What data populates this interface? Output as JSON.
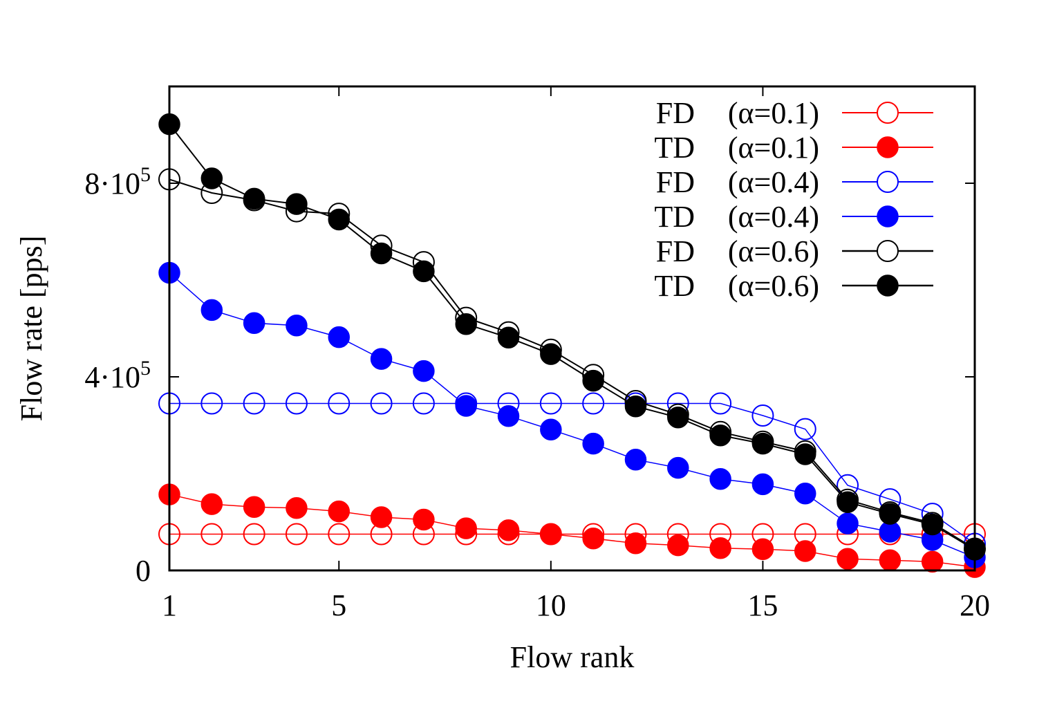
{
  "chart_data": {
    "type": "line",
    "xlabel": "Flow rank",
    "ylabel": "Flow rate [pps]",
    "xlim": [
      1,
      20
    ],
    "ylim": [
      0,
      1000000
    ],
    "x_ticks": [
      1,
      5,
      10,
      15,
      20
    ],
    "x_tick_labels": [
      "1",
      "5",
      "10",
      "15",
      "20"
    ],
    "y_ticks": [
      {
        "value": 0,
        "text": "0",
        "exp": ""
      },
      {
        "value": 400000,
        "text": "4·10",
        "exp": "5"
      },
      {
        "value": 800000,
        "text": "8·10",
        "exp": "5"
      }
    ],
    "grid": false,
    "legend_position": "top-right",
    "x": [
      1,
      2,
      3,
      4,
      5,
      6,
      7,
      8,
      9,
      10,
      11,
      12,
      13,
      14,
      15,
      16,
      17,
      18,
      19,
      20
    ],
    "series": [
      {
        "name": "FD (α=0.1)",
        "name_prefix": "FD",
        "name_param": "(α=0.1)",
        "color": "#ff0000",
        "marker": "open",
        "line_width": 1.5,
        "values": [
          75000,
          75000,
          75000,
          75000,
          75000,
          75000,
          75000,
          75000,
          75000,
          75000,
          75000,
          75000,
          75000,
          75000,
          75000,
          75000,
          75000,
          75000,
          75000,
          75000
        ]
      },
      {
        "name": "TD (α=0.1)",
        "name_prefix": "TD",
        "name_param": "(α=0.1)",
        "color": "#ff0000",
        "marker": "filled",
        "line_width": 1.5,
        "values": [
          157000,
          137000,
          131000,
          129000,
          122000,
          110000,
          105000,
          87000,
          83000,
          75000,
          66000,
          56000,
          52000,
          46000,
          44000,
          40000,
          24000,
          21000,
          18000,
          7000
        ]
      },
      {
        "name": "FD (α=0.4)",
        "name_prefix": "FD",
        "name_param": "(α=0.4)",
        "color": "#0000ff",
        "marker": "open",
        "line_width": 1.5,
        "values": [
          345000,
          345000,
          345000,
          345000,
          345000,
          345000,
          345000,
          345000,
          345000,
          345000,
          345000,
          345000,
          345000,
          345000,
          320000,
          292000,
          176000,
          147000,
          117000,
          55000
        ]
      },
      {
        "name": "TD (α=0.4)",
        "name_prefix": "TD",
        "name_param": "(α=0.4)",
        "color": "#0000ff",
        "marker": "filled",
        "line_width": 1.5,
        "values": [
          615000,
          538000,
          511000,
          506000,
          482000,
          437000,
          412000,
          340000,
          319000,
          291000,
          262000,
          229000,
          212000,
          189000,
          178000,
          159000,
          97000,
          80000,
          63000,
          27000
        ]
      },
      {
        "name": "FD (α=0.6)",
        "name_prefix": "FD",
        "name_param": "(α=0.6)",
        "color": "#000000",
        "marker": "open",
        "line_width": 2,
        "values": [
          808000,
          780000,
          765000,
          742000,
          737000,
          671000,
          637000,
          522000,
          492000,
          456000,
          404000,
          350000,
          322000,
          286000,
          266000,
          246000,
          146000,
          120000,
          98000,
          45000
        ]
      },
      {
        "name": "TD (α=0.6)",
        "name_prefix": "TD",
        "name_param": "(α=0.6)",
        "color": "#000000",
        "marker": "filled",
        "line_width": 2,
        "values": [
          922000,
          810000,
          768000,
          757000,
          725000,
          655000,
          618000,
          509000,
          481000,
          447000,
          392000,
          339000,
          316000,
          279000,
          262000,
          240000,
          141000,
          117000,
          95000,
          43000
        ]
      }
    ]
  }
}
